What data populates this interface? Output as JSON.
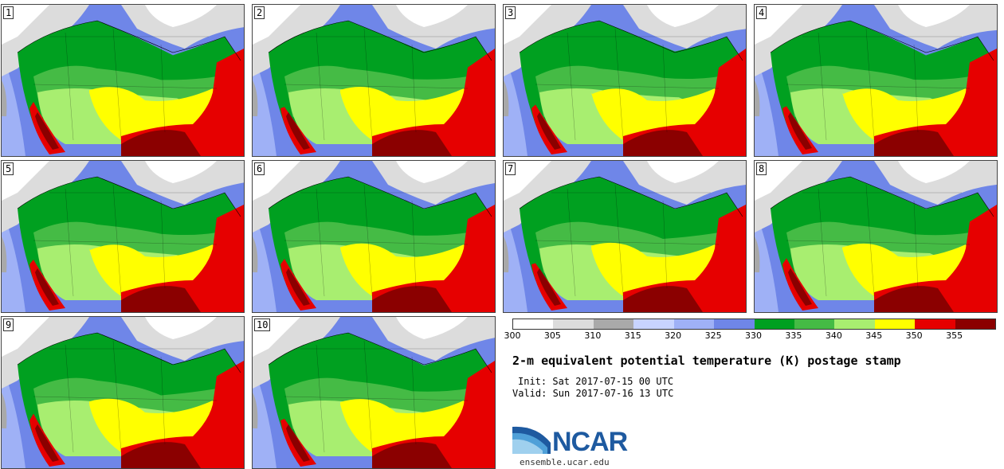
{
  "title": "2-m equivalent potential temperature (K) postage stamp",
  "init": "Init: Sat 2017-07-15 00 UTC",
  "valid": "Valid: Sun 2017-07-16 13 UTC",
  "logo_text": "NCAR",
  "site": "ensemble.ucar.edu",
  "panels": [
    "1",
    "2",
    "3",
    "4",
    "5",
    "6",
    "7",
    "8",
    "9",
    "10"
  ],
  "colorbar": {
    "ticks": [
      "300",
      "305",
      "310",
      "315",
      "320",
      "325",
      "330",
      "335",
      "340",
      "345",
      "350",
      "355"
    ],
    "colors": [
      "#ffffff",
      "#dcdcdc",
      "#a9a9a9",
      "#c8d4ff",
      "#9fb1f6",
      "#6f86e8",
      "#00a020",
      "#45bb45",
      "#a8ee70",
      "#ffff00",
      "#e60000",
      "#8b0000"
    ]
  }
}
